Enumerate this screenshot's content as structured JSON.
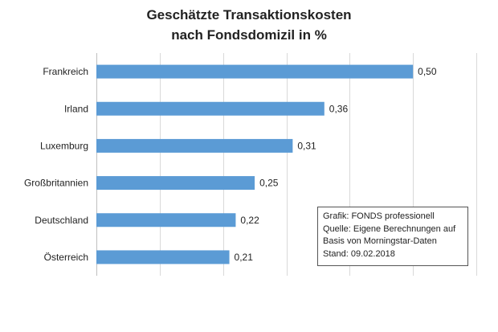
{
  "chart_data": {
    "type": "bar",
    "orientation": "horizontal",
    "title_line1": "Geschätzte Transaktionskosten",
    "title_line2": "nach Fondsdomizil in %",
    "categories": [
      "Frankreich",
      "Irland",
      "Luxemburg",
      "Großbritannien",
      "Deutschland",
      "Österreich"
    ],
    "values": [
      0.5,
      0.36,
      0.31,
      0.25,
      0.22,
      0.21
    ],
    "value_labels": [
      "0,50",
      "0,36",
      "0,31",
      "0,25",
      "0,22",
      "0,21"
    ],
    "xlim": [
      0,
      0.6
    ],
    "grid": true,
    "bar_color": "#5b9bd5",
    "source_box": [
      "Grafik: FONDS professionell",
      "Quelle: Eigene Berechnungen auf",
      "Basis von Morningstar-Daten",
      "Stand: 09.02.2018"
    ]
  }
}
